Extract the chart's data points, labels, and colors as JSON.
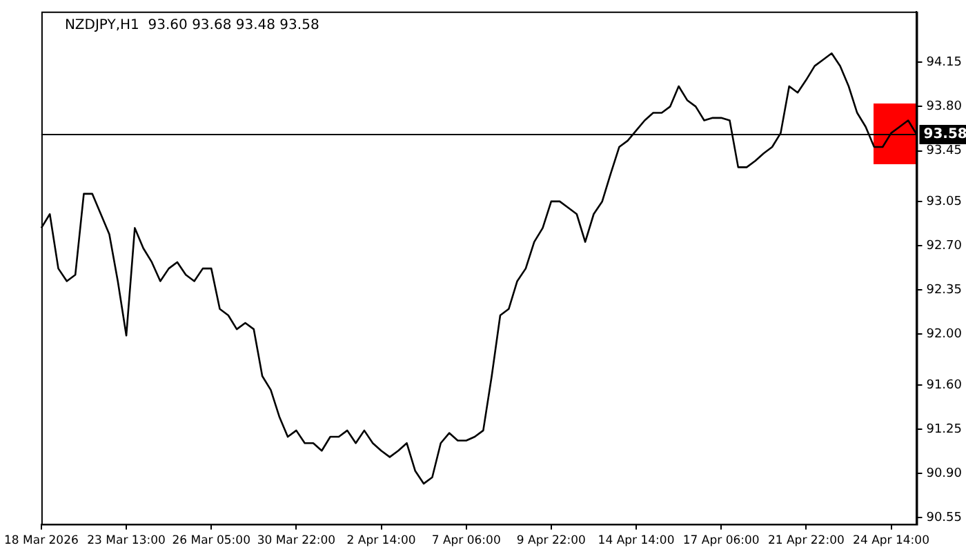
{
  "chart_data": {
    "type": "line",
    "title": "NZDJPY,H1  93.60 93.68 93.48 93.58",
    "categories": [
      "18 Mar 2026",
      null,
      null,
      null,
      null,
      null,
      null,
      null,
      null,
      null,
      "23 Mar 13:00",
      null,
      null,
      null,
      null,
      null,
      null,
      null,
      null,
      null,
      "26 Mar 05:00",
      null,
      null,
      null,
      null,
      null,
      null,
      null,
      null,
      null,
      "30 Mar 22:00",
      null,
      null,
      null,
      null,
      null,
      null,
      null,
      null,
      null,
      "2 Apr 14:00",
      null,
      null,
      null,
      null,
      null,
      null,
      null,
      null,
      null,
      "7 Apr 06:00",
      null,
      null,
      null,
      null,
      null,
      null,
      null,
      null,
      null,
      "9 Apr 22:00",
      null,
      null,
      null,
      null,
      null,
      null,
      null,
      null,
      null,
      "14 Apr 14:00",
      null,
      null,
      null,
      null,
      null,
      null,
      null,
      null,
      null,
      "17 Apr 06:00",
      null,
      null,
      null,
      null,
      null,
      null,
      null,
      null,
      null,
      "21 Apr 22:00",
      null,
      null,
      null,
      null,
      null,
      null,
      null,
      null,
      null,
      "24 Apr 14:00",
      null,
      null,
      null
    ],
    "series": [
      {
        "color": "#000000",
        "values": [
          92.84,
          92.95,
          92.52,
          92.42,
          92.47,
          93.11,
          93.11,
          92.95,
          92.79,
          92.42,
          91.99,
          92.84,
          92.68,
          92.57,
          92.42,
          92.52,
          92.57,
          92.47,
          92.42,
          92.52,
          92.52,
          92.2,
          92.15,
          92.04,
          92.09,
          92.04,
          91.67,
          91.56,
          91.35,
          91.19,
          91.24,
          91.14,
          91.14,
          91.08,
          91.19,
          91.19,
          91.24,
          91.14,
          91.24,
          91.14,
          91.08,
          91.03,
          91.08,
          91.14,
          90.92,
          90.82,
          90.87,
          91.14,
          91.22,
          91.16,
          91.16,
          91.19,
          91.24,
          91.67,
          92.15,
          92.2,
          92.42,
          92.52,
          92.73,
          92.84,
          93.05,
          93.05,
          93.0,
          92.95,
          92.73,
          92.95,
          93.05,
          93.27,
          93.48,
          93.53,
          93.61,
          93.69,
          93.75,
          93.75,
          93.8,
          93.96,
          93.85,
          93.8,
          93.69,
          93.71,
          93.71,
          93.69,
          93.32,
          93.32,
          93.37,
          93.43,
          93.48,
          93.59,
          93.96,
          93.91,
          94.01,
          94.12,
          94.17,
          94.22,
          94.12,
          93.96,
          93.75,
          93.64,
          93.48,
          93.48,
          93.59,
          93.64,
          93.69,
          93.58
        ]
      }
    ],
    "ylim": [
      90.5,
      94.55
    ],
    "yticks": [
      {
        "value": 90.55,
        "label": "90.55"
      },
      {
        "value": 90.9,
        "label": "90.90"
      },
      {
        "value": 91.25,
        "label": "91.25"
      },
      {
        "value": 91.6,
        "label": "91.60"
      },
      {
        "value": 92,
        "label": "92.00"
      },
      {
        "value": 92.35,
        "label": "92.35"
      },
      {
        "value": 92.7,
        "label": "92.70"
      },
      {
        "value": 93.05,
        "label": "93.05"
      },
      {
        "value": 93.45,
        "label": "93.45"
      },
      {
        "value": 93.8,
        "label": "93.80"
      },
      {
        "value": 94.15,
        "label": "94.15"
      }
    ],
    "ref_lines": [
      {
        "axis": "y",
        "value": 93.58,
        "label": "93.58",
        "color": "#000000"
      }
    ],
    "marker": "none",
    "line_style": "solid",
    "grid": false,
    "legend": false
  }
}
